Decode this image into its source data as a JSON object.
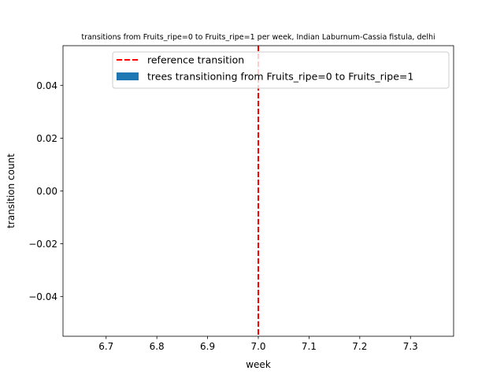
{
  "chart_data": {
    "type": "bar",
    "title": "transitions from Fruits_ripe=0 to Fruits_ripe=1 per week, Indian Laburnum-Cassia fistula, delhi",
    "xlabel": "week",
    "ylabel": "transition count",
    "xlim": [
      6.615,
      7.385
    ],
    "ylim": [
      -0.055,
      0.055
    ],
    "x_ticks": [
      6.7,
      6.8,
      6.9,
      7.0,
      7.1,
      7.2,
      7.3
    ],
    "x_tick_labels": [
      "6.7",
      "6.8",
      "6.9",
      "7.0",
      "7.1",
      "7.2",
      "7.3"
    ],
    "y_ticks": [
      -0.04,
      -0.02,
      0.0,
      0.02,
      0.04
    ],
    "y_tick_labels": [
      "−0.04",
      "−0.02",
      "0.00",
      "0.02",
      "0.04"
    ],
    "grid": false,
    "series": [
      {
        "name": "trees transitioning from Fruits_ripe=0 to Fruits_ripe=1",
        "type": "bar",
        "color": "#1f77b4",
        "x": [],
        "values": []
      }
    ],
    "reference_lines": [
      {
        "name": "reference transition",
        "orientation": "vertical",
        "x": 7.0,
        "color": "#ff0000",
        "style": "dashed"
      }
    ],
    "legend": {
      "placement": "upper-center",
      "entries": [
        "reference transition",
        "trees transitioning from Fruits_ripe=0 to Fruits_ripe=1"
      ]
    }
  }
}
